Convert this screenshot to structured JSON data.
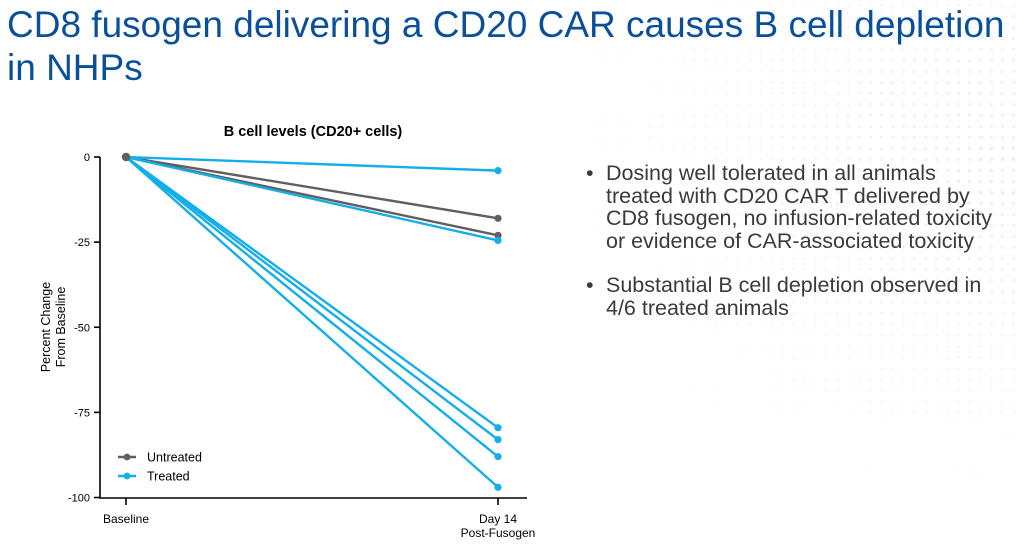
{
  "slide": {
    "title": "CD8 fusogen delivering a CD20 CAR causes B cell depletion in NHPs",
    "bullets": [
      "Dosing well tolerated in all animals treated with CD20 CAR T delivered by CD8 fusogen, no infusion-related toxicity or evidence of CAR-associated toxicity",
      "Substantial B cell depletion observed in 4/6 treated animals"
    ]
  },
  "colors": {
    "title": "#0a4f9c",
    "untreated": "#5f5f5f",
    "treated": "#14aee8",
    "bullet_text": "#3a3a3a"
  },
  "chart_data": {
    "type": "line",
    "title": "B cell levels (CD20+ cells)",
    "xlabel": "",
    "ylabel": "Percent Change From Baseline",
    "ylabel_lines": [
      "Percent Change",
      "From Baseline"
    ],
    "categories": [
      "Baseline",
      "Day 14 Post-Fusogen"
    ],
    "category_label_lines": [
      [
        "Baseline"
      ],
      [
        "Day 14",
        "Post-Fusogen"
      ]
    ],
    "ylim": [
      -100,
      0
    ],
    "yticks": [
      0,
      -25,
      -50,
      -75,
      -100
    ],
    "ytick_labels": [
      "0",
      "-25",
      "-50",
      "-75",
      "-100"
    ],
    "grid": false,
    "legend": {
      "position": "bottom-left",
      "entries": [
        {
          "label": "Untreated",
          "group": "untreated"
        },
        {
          "label": "Treated",
          "group": "treated"
        }
      ]
    },
    "series": [
      {
        "name": "Untreated",
        "group": "untreated",
        "values": [
          0,
          -18
        ]
      },
      {
        "name": "Untreated",
        "group": "untreated",
        "values": [
          0,
          -23
        ]
      },
      {
        "name": "Treated",
        "group": "treated",
        "values": [
          0,
          -4
        ]
      },
      {
        "name": "Treated",
        "group": "treated",
        "values": [
          0,
          -24.5
        ]
      },
      {
        "name": "Treated",
        "group": "treated",
        "values": [
          0,
          -79.5
        ]
      },
      {
        "name": "Treated",
        "group": "treated",
        "values": [
          0,
          -83
        ]
      },
      {
        "name": "Treated",
        "group": "treated",
        "values": [
          0,
          -88
        ]
      },
      {
        "name": "Treated",
        "group": "treated",
        "values": [
          0,
          -97
        ]
      }
    ]
  }
}
